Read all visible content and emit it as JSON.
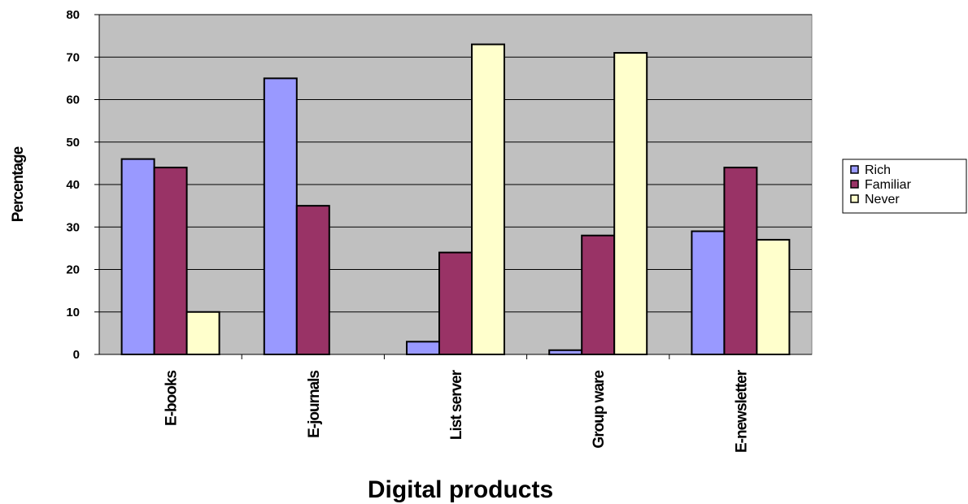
{
  "chart_data": {
    "type": "bar",
    "categories": [
      "E-books",
      "E-journals",
      "List server",
      "Group ware",
      "E-newsletter"
    ],
    "series": [
      {
        "name": "Rich",
        "values": [
          46,
          65,
          3,
          1,
          29
        ],
        "color": "#9999ff"
      },
      {
        "name": "Familiar",
        "values": [
          44,
          35,
          24,
          28,
          44
        ],
        "color": "#993366"
      },
      {
        "name": "Never",
        "values": [
          10,
          null,
          73,
          71,
          27
        ],
        "color": "#ffffcc"
      }
    ],
    "xlabel": "Digital products",
    "ylabel": "Percentage",
    "ylim": [
      0,
      80
    ],
    "yticks": [
      0,
      10,
      20,
      30,
      40,
      50,
      60,
      70,
      80
    ],
    "grid": true,
    "plot_background": "#c0c0c0",
    "legend_position": "right"
  }
}
